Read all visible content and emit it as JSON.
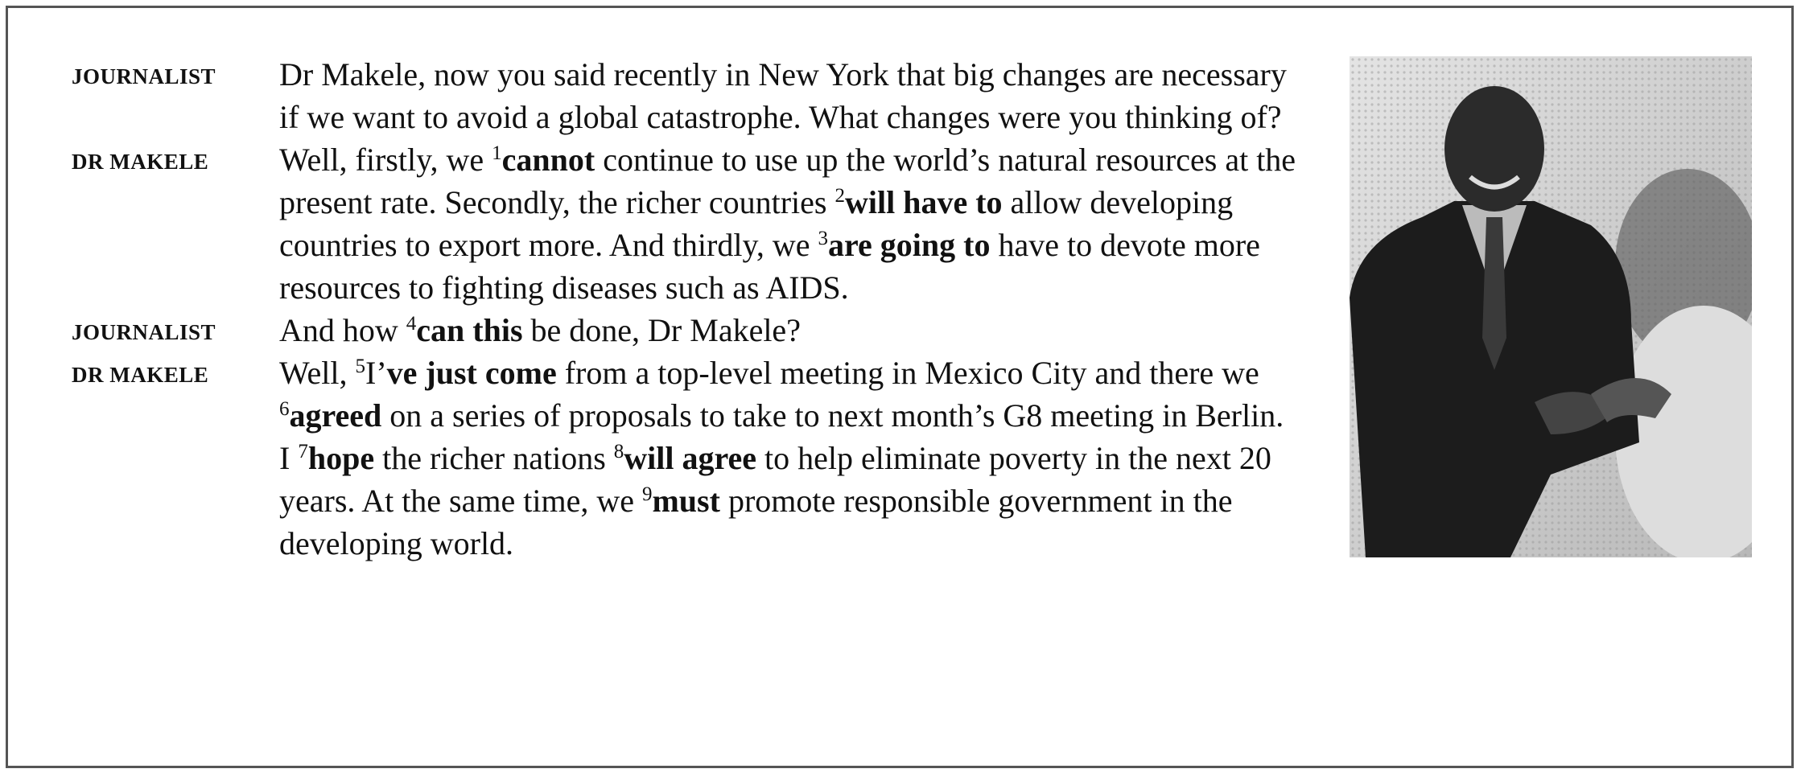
{
  "turns": [
    {
      "speaker": "JOURNALIST",
      "segments": [
        {
          "text": "Dr Makele, now you said recently in New York that big changes are necessary if we want to avoid a global catastrophe. What changes were you thinking of?"
        }
      ]
    },
    {
      "speaker": "DR MAKELE",
      "segments": [
        {
          "text": "Well, firstly, we "
        },
        {
          "text": "1",
          "sup": true
        },
        {
          "text": "cannot",
          "bold": true
        },
        {
          "text": " continue to use up the world’s natural resources at the present rate. Secondly, the richer countries "
        },
        {
          "text": "2",
          "sup": true
        },
        {
          "text": "will have to",
          "bold": true
        },
        {
          "text": " allow developing countries to export more. And thirdly, we "
        },
        {
          "text": "3",
          "sup": true
        },
        {
          "text": "are going to",
          "bold": true
        },
        {
          "text": " have to devote more resources to fighting diseases such as AIDS."
        }
      ]
    },
    {
      "speaker": "JOURNALIST",
      "segments": [
        {
          "text": "And how "
        },
        {
          "text": "4",
          "sup": true
        },
        {
          "text": "can this",
          "bold": true
        },
        {
          "text": " be done, Dr Makele?"
        }
      ]
    },
    {
      "speaker": "DR MAKELE",
      "segments": [
        {
          "text": "Well, "
        },
        {
          "text": "5",
          "sup": true
        },
        {
          "text": "I’"
        },
        {
          "text": "ve just come",
          "bold": true
        },
        {
          "text": " from a top-level meeting in Mexico City and there we "
        },
        {
          "text": "6",
          "sup": true
        },
        {
          "text": "agreed",
          "bold": true
        },
        {
          "text": " on a series of proposals to take to next month’s G8 meeting in Berlin. I "
        },
        {
          "text": "7",
          "sup": true
        },
        {
          "text": "hope",
          "bold": true
        },
        {
          "text": " the richer nations "
        },
        {
          "text": "8",
          "sup": true
        },
        {
          "text": "will agree",
          "bold": true
        },
        {
          "text": " to help eliminate poverty in the next 20 years. At the same time, we "
        },
        {
          "text": "9",
          "sup": true
        },
        {
          "text": "must",
          "bold": true
        },
        {
          "text": " promote responsible government in the developing world."
        }
      ]
    }
  ]
}
